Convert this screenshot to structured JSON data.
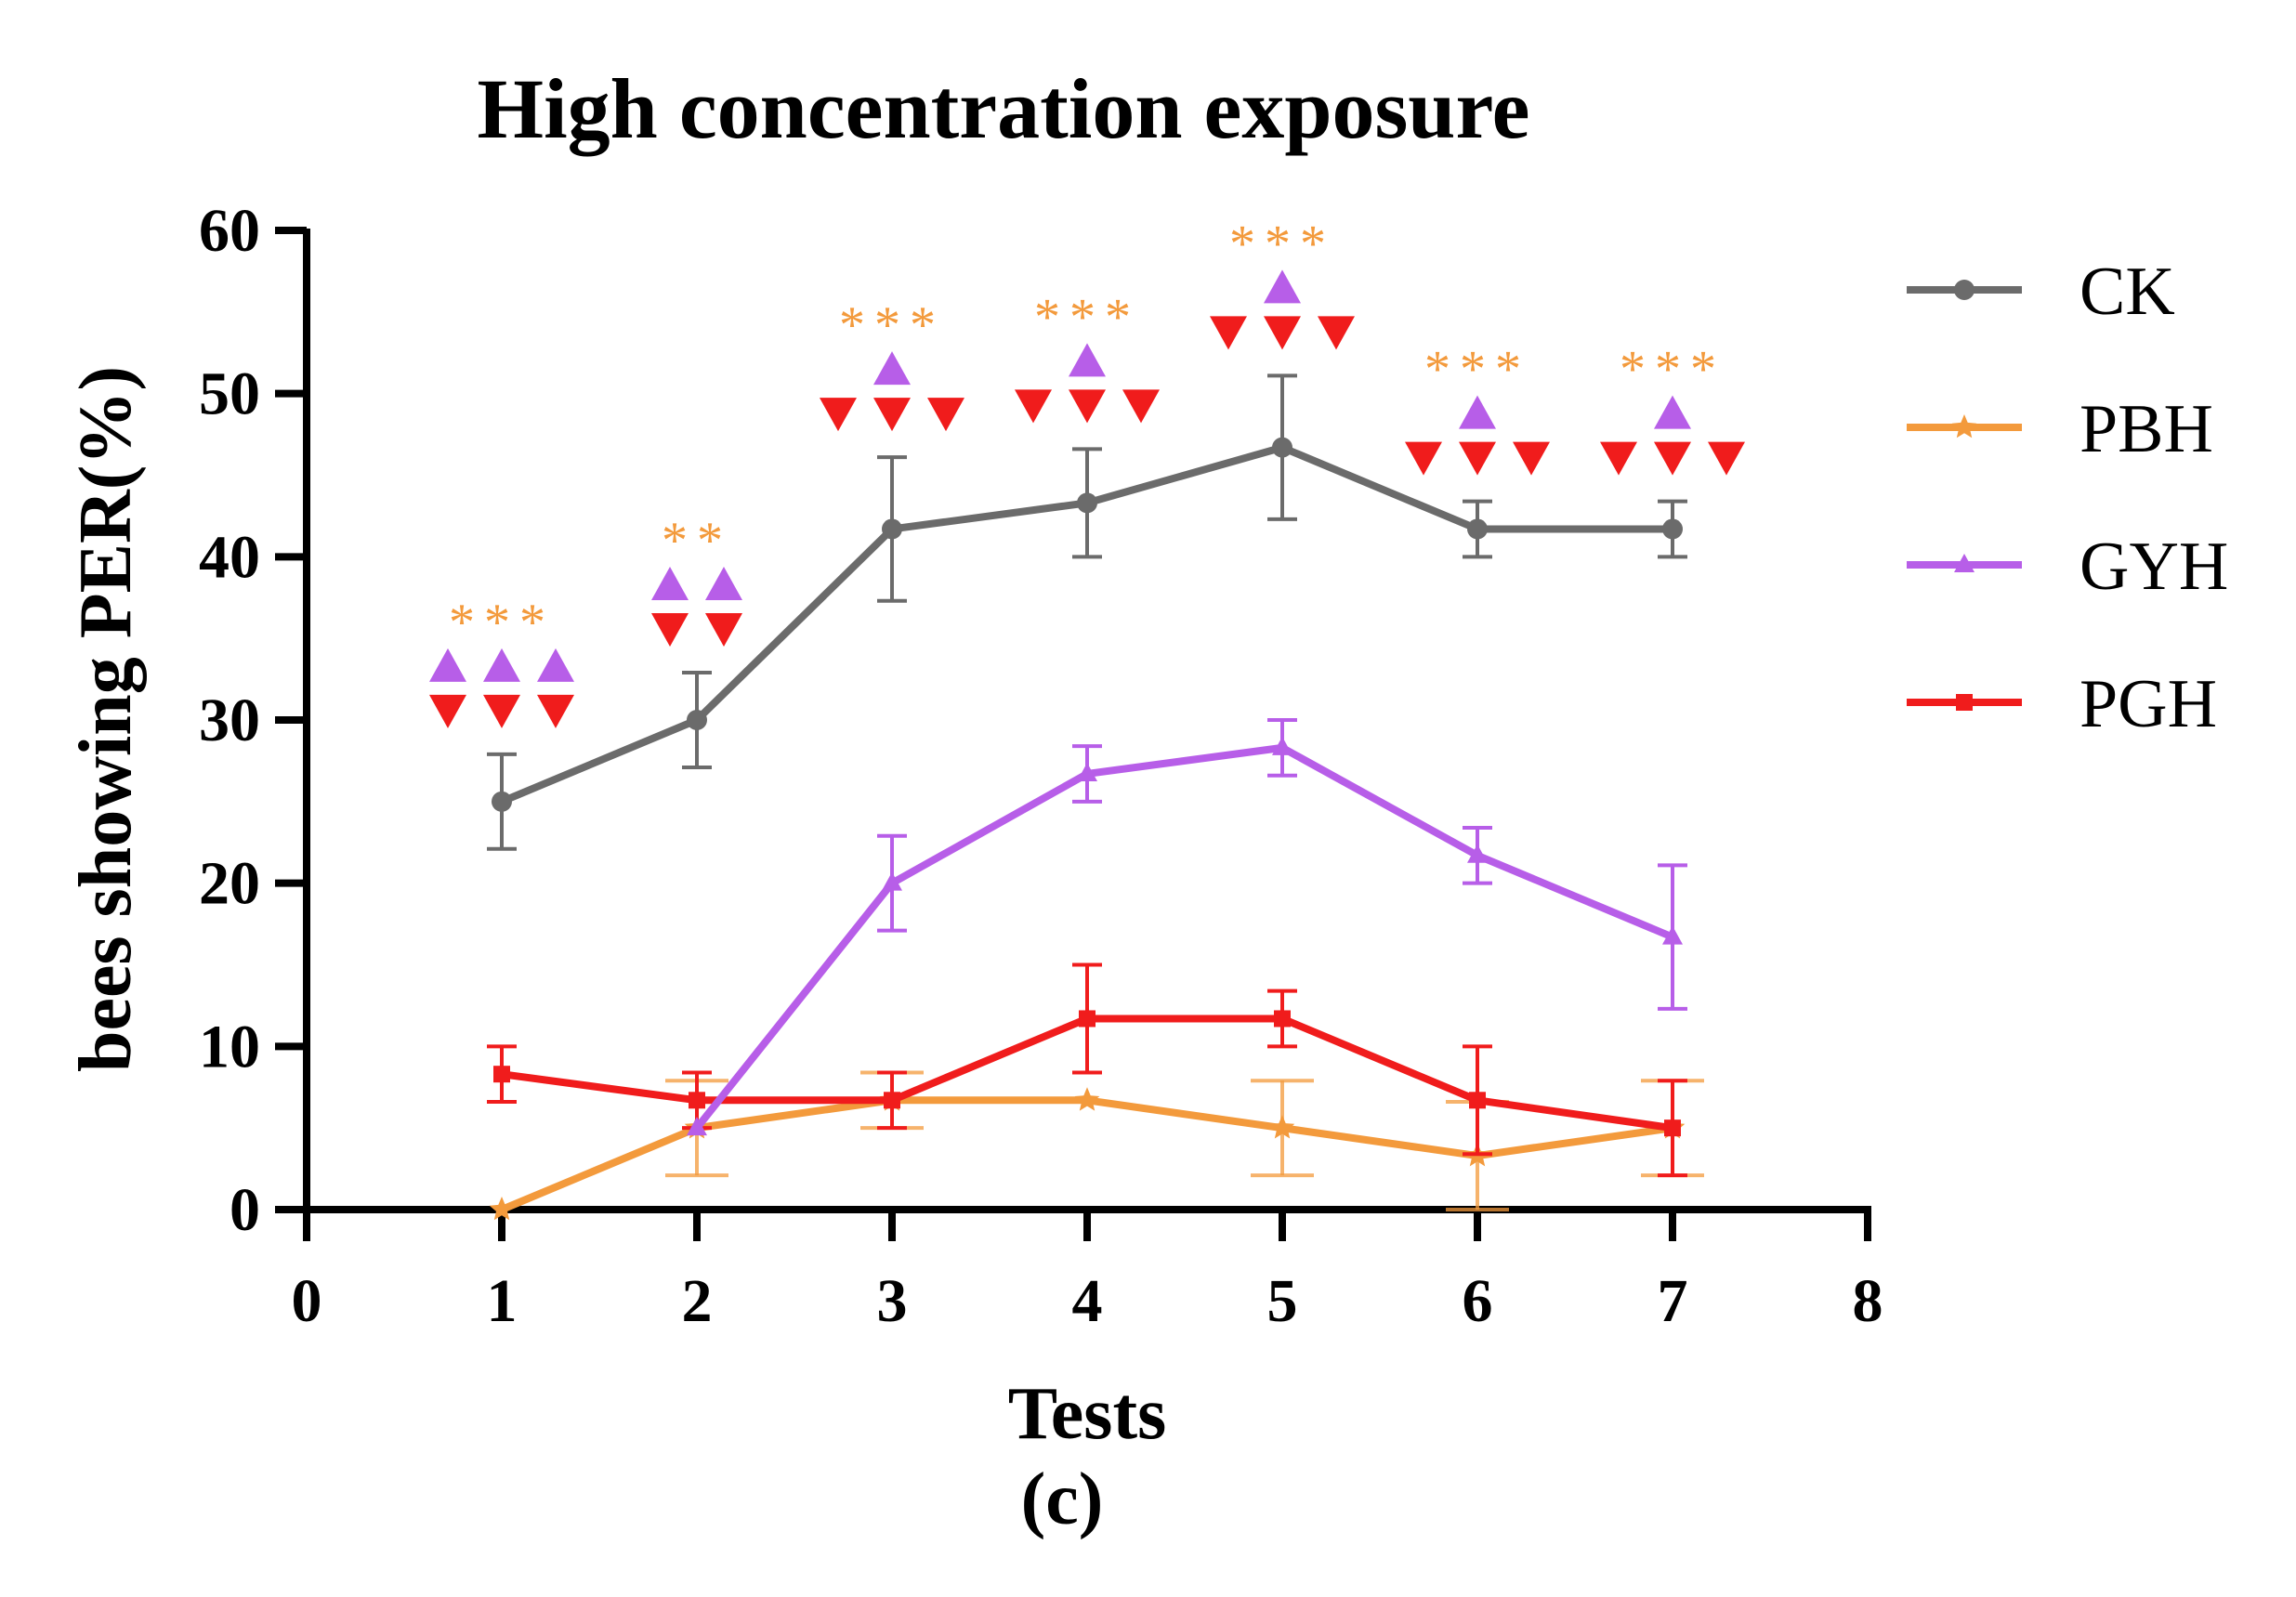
{
  "chart_data": {
    "type": "line",
    "title": "High concentration exposure",
    "xlabel": "Tests",
    "ylabel": "bees showing PER(%)",
    "caption": "(c)",
    "xlim": [
      0,
      8
    ],
    "ylim": [
      0,
      60
    ],
    "xticks": [
      "0",
      "1",
      "2",
      "3",
      "4",
      "5",
      "6",
      "7",
      "8"
    ],
    "yticks": [
      "0",
      "10",
      "20",
      "30",
      "40",
      "50",
      "60"
    ],
    "x": [
      1,
      2,
      3,
      4,
      5,
      6,
      7
    ],
    "series": [
      {
        "name": "CK",
        "color": "#6b6b6b",
        "marker": "circle",
        "values": [
          25,
          30,
          41.7,
          43.3,
          46.7,
          41.7,
          41.7
        ],
        "errors": [
          2.9,
          2.9,
          4.4,
          3.3,
          4.4,
          1.7,
          1.7
        ]
      },
      {
        "name": "PBH",
        "color": "#f39a3c",
        "marker": "star",
        "values": [
          0,
          5,
          6.7,
          6.7,
          5,
          3.3,
          5
        ],
        "errors": [
          0,
          2.9,
          1.7,
          0,
          2.9,
          3.3,
          2.9
        ]
      },
      {
        "name": "GYH",
        "color": "#b75ee8",
        "marker": "triangle",
        "values": [
          null,
          5,
          20,
          26.7,
          28.3,
          21.7,
          16.7
        ],
        "errors": [
          null,
          0,
          2.9,
          1.7,
          1.7,
          1.7,
          4.4
        ]
      },
      {
        "name": "PGH",
        "color": "#f01c1c",
        "marker": "square",
        "values": [
          8.3,
          6.7,
          6.7,
          11.7,
          11.7,
          6.7,
          5
        ],
        "errors": [
          1.7,
          1.7,
          1.7,
          3.3,
          1.7,
          3.3,
          2.9
        ]
      }
    ],
    "significance": [
      {
        "x": 1,
        "stars": "***",
        "up_triangles": 3,
        "down_triangles": 3
      },
      {
        "x": 2,
        "stars": "**",
        "up_triangles": 2,
        "down_triangles": 2
      },
      {
        "x": 3,
        "stars": "***",
        "up_triangles": 1,
        "down_triangles": 3
      },
      {
        "x": 4,
        "stars": "***",
        "up_triangles": 1,
        "down_triangles": 3
      },
      {
        "x": 5,
        "stars": "***",
        "up_triangles": 1,
        "down_triangles": 3
      },
      {
        "x": 6,
        "stars": "***",
        "up_triangles": 1,
        "down_triangles": 3
      },
      {
        "x": 7,
        "stars": "***",
        "up_triangles": 1,
        "down_triangles": 3
      }
    ],
    "legend_position": "right",
    "grid": false
  }
}
